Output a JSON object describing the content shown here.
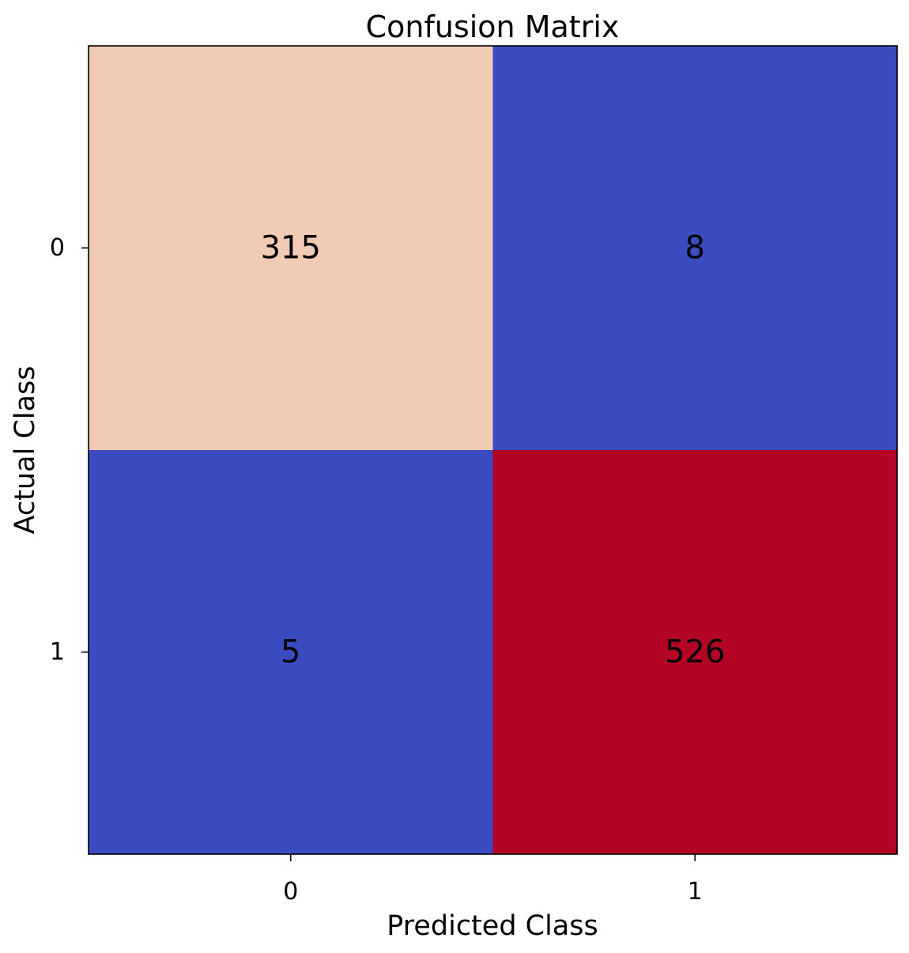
{
  "chart_data": {
    "type": "heatmap",
    "title": "Confusion Matrix",
    "xlabel": "Predicted Class",
    "ylabel": "Actual Class",
    "x_categories": [
      "0",
      "1"
    ],
    "y_categories": [
      "0",
      "1"
    ],
    "values": [
      [
        315,
        8
      ],
      [
        5,
        526
      ]
    ],
    "cell_labels": [
      [
        "315",
        "8"
      ],
      [
        "5",
        "526"
      ]
    ],
    "colormap": "coolwarm",
    "cell_colors": [
      [
        "#f2cbb7",
        "#3b4cc0"
      ],
      [
        "#3b4cc0",
        "#b40426"
      ]
    ],
    "grid": false,
    "colorbar": false
  }
}
